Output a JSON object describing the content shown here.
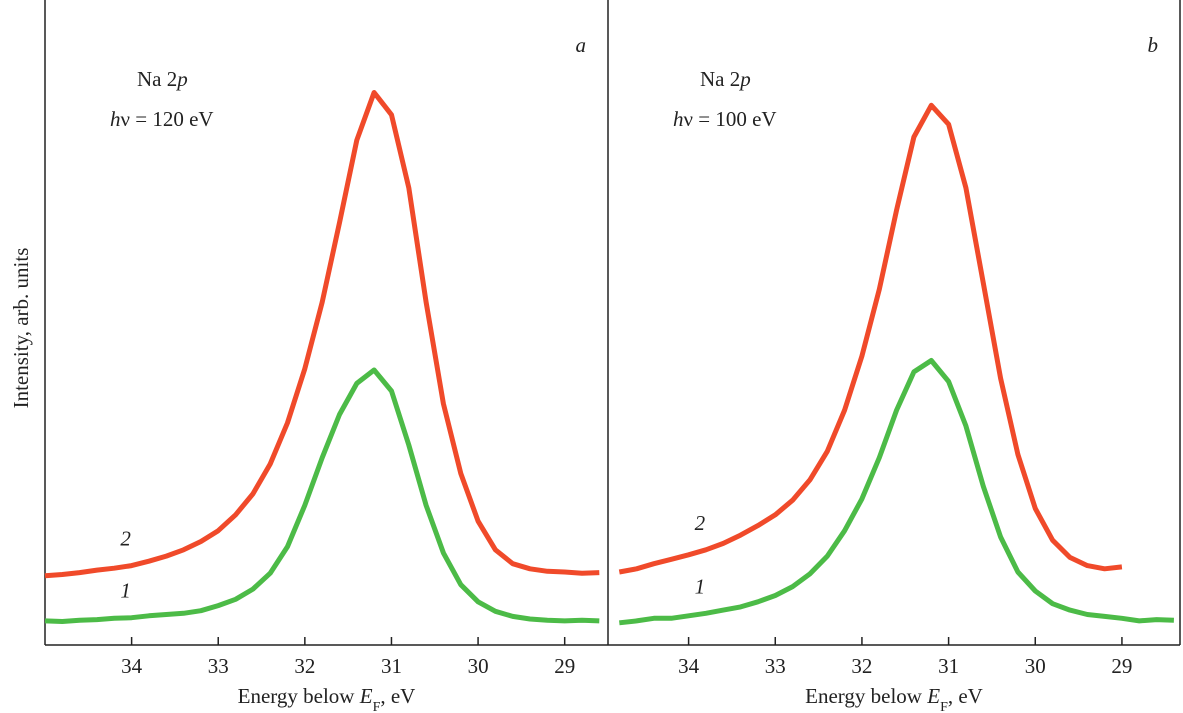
{
  "chart_data": [
    {
      "type": "line",
      "panel_label": "a",
      "annotation": [
        {
          "runs": [
            "Na 2",
            "p"
          ],
          "italic": [
            1
          ]
        },
        {
          "runs": [
            "h",
            "ν = 120 eV"
          ],
          "italic": [
            0
          ]
        }
      ],
      "xlabel": {
        "runs": [
          "Energy below ",
          "E",
          "F",
          ", eV"
        ],
        "italic": [
          1
        ],
        "sub": [
          2
        ]
      },
      "ylabel": "Intensity, arb. units",
      "xlim": [
        35.0,
        28.5
      ],
      "xticks": [
        34,
        33,
        32,
        31,
        30,
        29
      ],
      "ylim": [
        0,
        100
      ],
      "x": [
        35.0,
        34.8,
        34.6,
        34.4,
        34.2,
        34.0,
        33.8,
        33.6,
        33.4,
        33.2,
        33.0,
        32.8,
        32.6,
        32.4,
        32.2,
        32.0,
        31.8,
        31.6,
        31.4,
        31.2,
        31.0,
        30.8,
        30.6,
        30.4,
        30.2,
        30.0,
        29.8,
        29.6,
        29.4,
        29.2,
        29.0,
        28.8,
        28.6
      ],
      "series": [
        {
          "name": "1",
          "color": "#4cbb47",
          "values": [
            3.8,
            3.7,
            3.9,
            4.0,
            4.2,
            4.3,
            4.6,
            4.8,
            5.0,
            5.4,
            6.2,
            7.2,
            8.8,
            11.3,
            15.5,
            22.0,
            29.5,
            36.3,
            41.2,
            43.3,
            40.0,
            31.5,
            22.0,
            14.5,
            9.5,
            6.8,
            5.3,
            4.5,
            4.1,
            3.9,
            3.8,
            3.9,
            3.8
          ]
        },
        {
          "name": "2",
          "color": "#f04a2a",
          "values": [
            10.9,
            11.1,
            11.4,
            11.8,
            12.1,
            12.5,
            13.2,
            14.0,
            15.0,
            16.3,
            18.0,
            20.5,
            23.8,
            28.5,
            35.0,
            43.5,
            54.0,
            66.5,
            79.5,
            87.0,
            83.5,
            72.0,
            54.0,
            38.0,
            27.0,
            19.5,
            15.0,
            12.8,
            12.0,
            11.6,
            11.5,
            11.3,
            11.4
          ]
        }
      ]
    },
    {
      "type": "line",
      "panel_label": "b",
      "annotation": [
        {
          "runs": [
            "Na 2",
            "p"
          ],
          "italic": [
            1
          ]
        },
        {
          "runs": [
            "h",
            "ν = 100 eV"
          ],
          "italic": [
            0
          ]
        }
      ],
      "xlabel": {
        "runs": [
          "Energy below ",
          "E",
          "F",
          ", eV"
        ],
        "italic": [
          1
        ],
        "sub": [
          2
        ]
      },
      "xlim": [
        34.93,
        28.33
      ],
      "xticks": [
        34,
        33,
        32,
        31,
        30,
        29
      ],
      "ylim": [
        0,
        100
      ],
      "x": [
        34.8,
        34.6,
        34.4,
        34.2,
        34.0,
        33.8,
        33.6,
        33.4,
        33.2,
        33.0,
        32.8,
        32.6,
        32.4,
        32.2,
        32.0,
        31.8,
        31.6,
        31.4,
        31.2,
        31.0,
        30.8,
        30.6,
        30.4,
        30.2,
        30.0,
        29.8,
        29.6,
        29.4,
        29.2,
        29.0,
        28.8,
        28.6,
        28.4
      ],
      "series": [
        {
          "name": "1",
          "color": "#4cbb47",
          "values": [
            3.5,
            3.8,
            4.2,
            4.2,
            4.6,
            5.0,
            5.5,
            6.0,
            6.8,
            7.8,
            9.2,
            11.2,
            14.0,
            18.0,
            23.0,
            29.5,
            37.0,
            43.0,
            44.8,
            41.5,
            34.5,
            25.0,
            17.0,
            11.5,
            8.5,
            6.5,
            5.5,
            4.8,
            4.5,
            4.2,
            3.8,
            4.0,
            3.9
          ]
        },
        {
          "name": "2",
          "color": "#f04a2a",
          "values": [
            11.5,
            12.0,
            12.8,
            13.5,
            14.2,
            15.0,
            16.0,
            17.3,
            18.8,
            20.5,
            22.8,
            26.0,
            30.5,
            37.0,
            45.5,
            56.0,
            68.5,
            80.0,
            85.0,
            82.0,
            72.0,
            57.0,
            42.0,
            30.0,
            21.5,
            16.5,
            13.8,
            12.5,
            12.0,
            12.3,
            null,
            null,
            null
          ]
        }
      ]
    }
  ]
}
